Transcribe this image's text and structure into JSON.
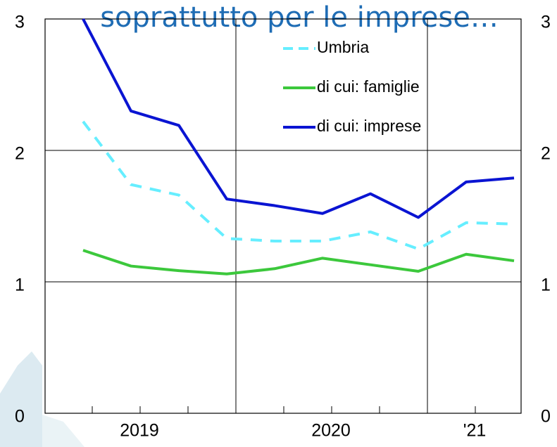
{
  "chart_data": {
    "type": "line",
    "title": "soprattutto per le imprese…",
    "categories": [
      null,
      "2019",
      null,
      null,
      null,
      "2020",
      null,
      null,
      "'21",
      null
    ],
    "series": [
      {
        "name": "Umbria",
        "color": "#66eeff",
        "dashed": true,
        "values": [
          2.22,
          1.74,
          1.66,
          1.33,
          1.31,
          1.31,
          1.38,
          1.25,
          1.45,
          1.44
        ]
      },
      {
        "name": "di cui: famiglie",
        "color": "#3cc83c",
        "values": [
          1.24,
          1.12,
          1.085,
          1.06,
          1.1,
          1.18,
          1.13,
          1.08,
          1.21,
          1.16
        ]
      },
      {
        "name": "di cui: imprese",
        "color": "#0a14d2",
        "values": [
          3.0,
          2.3,
          2.19,
          1.63,
          1.58,
          1.52,
          1.67,
          1.49,
          1.76,
          1.79
        ]
      }
    ],
    "ylim": [
      0,
      3
    ],
    "yticks": [
      0,
      1,
      2,
      3
    ],
    "y2lim": [
      0,
      3
    ],
    "y2ticks": [
      0,
      1,
      2,
      3
    ],
    "grid": true,
    "legend": "top-right"
  }
}
